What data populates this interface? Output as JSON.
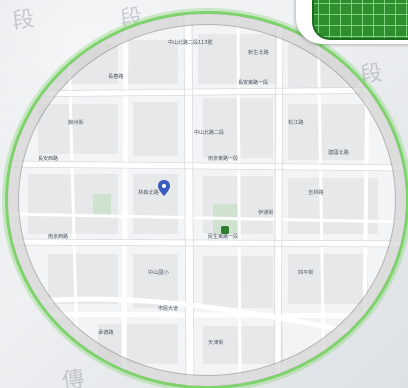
{
  "map": {
    "colors": {
      "background": "#f4f5f6",
      "block": "#e6e8ea",
      "road_major": "#ffffff",
      "road_minor": "#ffffff",
      "river": "#c9d6e4",
      "green": "#cfe2cf",
      "rim_green": "#7fd36b",
      "badge_green": "#2f8f2f"
    },
    "background_glyphs": [
      "段",
      "段",
      "段",
      "傳"
    ],
    "labels": [
      "中山北路二段113號",
      "長安東路一段",
      "中山北路二段",
      "長安西路",
      "南京東路一段",
      "南京西路",
      "松江路",
      "吉林路",
      "林森北路",
      "新生北路",
      "伊通街",
      "中山國小",
      "錦州街",
      "民生東路一段",
      "長春路",
      "四平街",
      "建國北路",
      "市民大道",
      "承德路",
      "天津街"
    ],
    "icons": [
      "location-marker-icon",
      "mrt-station-icon"
    ]
  }
}
